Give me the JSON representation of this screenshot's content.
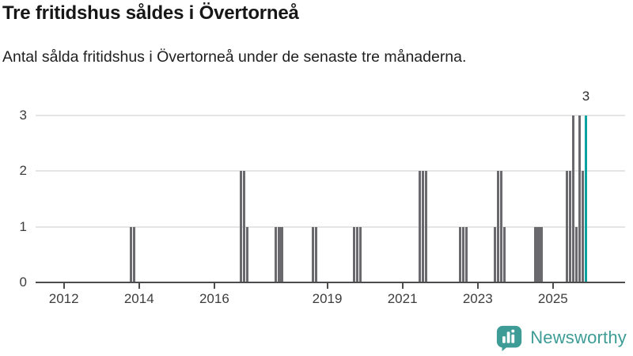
{
  "header": {
    "title": "Tre fritidshus såldes i Övertorneå",
    "subtitle": "Antal sålda fritidshus i Övertorneå under de senaste tre månaderna."
  },
  "chart_data": {
    "type": "bar",
    "title": "Tre fritidshus såldes i Övertorneå",
    "subtitle": "Antal sålda fritidshus i Övertorneå under de senaste tre månaderna.",
    "grid": true,
    "x_axis": {
      "start": "2011-04",
      "end": "2026-11",
      "ticks": [
        "2012",
        "2014",
        "2016",
        "2019",
        "2021",
        "2023",
        "2025"
      ]
    },
    "y_axis": {
      "range": [
        0,
        3
      ],
      "ticks": [
        0,
        1,
        2,
        3
      ]
    },
    "bar_color": "#69696e",
    "series": [
      {
        "m": "2013-10",
        "v": 1
      },
      {
        "m": "2013-11",
        "v": 1
      },
      {
        "m": "2016-09",
        "v": 2
      },
      {
        "m": "2016-10",
        "v": 2
      },
      {
        "m": "2016-11",
        "v": 1
      },
      {
        "m": "2017-08",
        "v": 1
      },
      {
        "m": "2017-09",
        "v": 1
      },
      {
        "m": "2017-10",
        "v": 1
      },
      {
        "m": "2018-08",
        "v": 1
      },
      {
        "m": "2018-09",
        "v": 1
      },
      {
        "m": "2019-09",
        "v": 1
      },
      {
        "m": "2019-10",
        "v": 1
      },
      {
        "m": "2019-11",
        "v": 1
      },
      {
        "m": "2021-06",
        "v": 2
      },
      {
        "m": "2021-07",
        "v": 2
      },
      {
        "m": "2021-08",
        "v": 2
      },
      {
        "m": "2022-07",
        "v": 1
      },
      {
        "m": "2022-08",
        "v": 1
      },
      {
        "m": "2022-09",
        "v": 1
      },
      {
        "m": "2023-06",
        "v": 1
      },
      {
        "m": "2023-07",
        "v": 2
      },
      {
        "m": "2023-08",
        "v": 2
      },
      {
        "m": "2023-09",
        "v": 1
      },
      {
        "m": "2024-07",
        "v": 1
      },
      {
        "m": "2024-08",
        "v": 1
      },
      {
        "m": "2024-09",
        "v": 1
      },
      {
        "m": "2025-05",
        "v": 2
      },
      {
        "m": "2025-06",
        "v": 2
      },
      {
        "m": "2025-07",
        "v": 3
      },
      {
        "m": "2025-08",
        "v": 1
      },
      {
        "m": "2025-09",
        "v": 3
      },
      {
        "m": "2025-10",
        "v": 2
      },
      {
        "m": "2025-11",
        "v": 3
      }
    ],
    "highlight": {
      "month": "2025-11",
      "value": 3,
      "label": "3",
      "color": "#0aa1a1"
    }
  },
  "branding": {
    "name": "Newsworthy",
    "color": "#3d9c95"
  }
}
